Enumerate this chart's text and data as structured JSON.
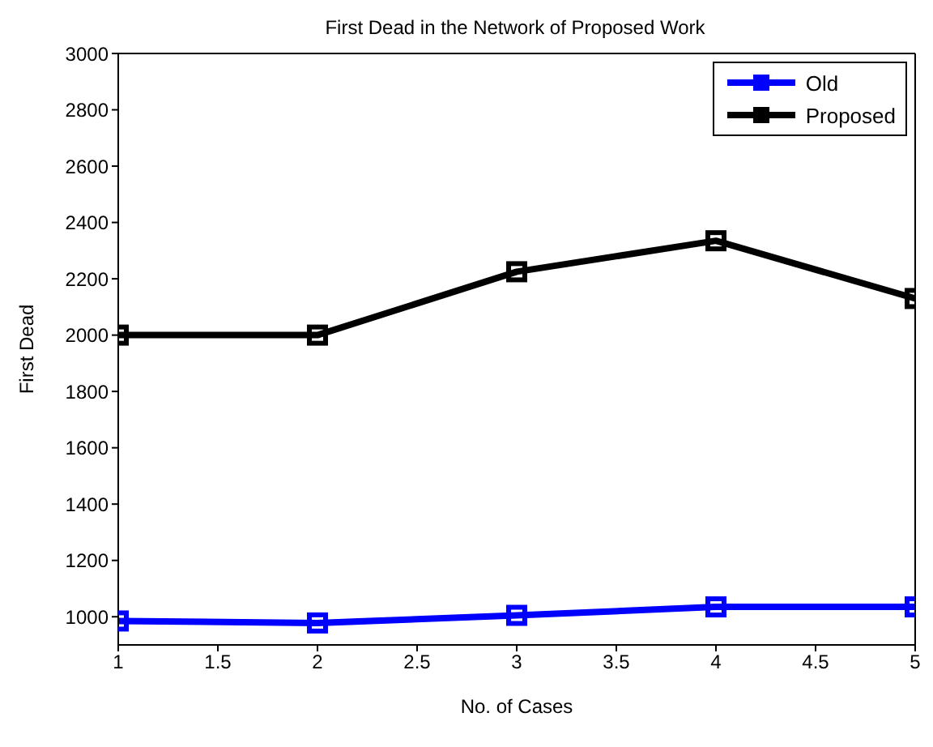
{
  "chart_data": {
    "type": "line",
    "title": "First Dead in the Network of Proposed Work",
    "xlabel": "No. of Cases",
    "ylabel": "First Dead",
    "x": [
      1,
      2,
      3,
      4,
      5
    ],
    "series": [
      {
        "name": "Old",
        "color": "#0000ff",
        "values": [
          985,
          978,
          1005,
          1035,
          1035
        ]
      },
      {
        "name": "Proposed",
        "color": "#000000",
        "values": [
          2000,
          2000,
          2225,
          2335,
          2130
        ]
      }
    ],
    "xlim": [
      1,
      5
    ],
    "xticks": [
      1,
      1.5,
      2,
      2.5,
      3,
      3.5,
      4,
      4.5,
      5
    ],
    "ylim": [
      900,
      3000
    ],
    "yticks": [
      1000,
      1200,
      1400,
      1600,
      1800,
      2000,
      2200,
      2400,
      2600,
      2800,
      3000
    ],
    "legend": "top right",
    "marker": "square",
    "line_style": "solid"
  }
}
